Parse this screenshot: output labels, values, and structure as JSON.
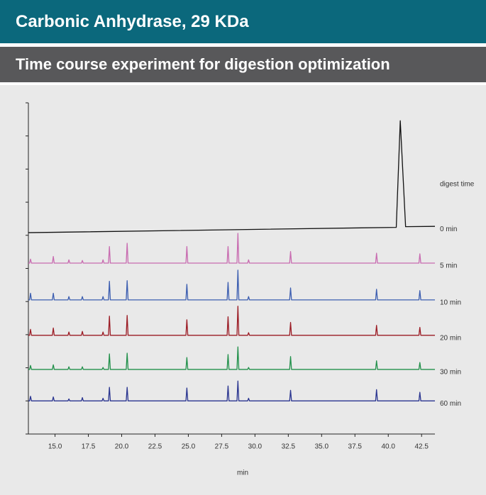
{
  "chart_data": {
    "type": "line",
    "title": "Carbonic Anhydrase, 29 KDa",
    "subtitle": "Time course experiment for digestion optimization",
    "x_label": "min",
    "legend_title": "digest time",
    "xlim": [
      13.0,
      43.5
    ],
    "xticks": [
      {
        "value": 15,
        "label": "15.0"
      },
      17.5,
      {
        "value": 20,
        "label": "20.0"
      },
      22.5,
      {
        "value": 25,
        "label": "25.0"
      },
      27.5,
      {
        "value": 30,
        "label": "30.0"
      },
      32.5,
      {
        "value": 35,
        "label": "35.0"
      },
      37.5,
      {
        "value": 40,
        "label": "40.0"
      },
      42.5
    ],
    "ylim": [
      0,
      10
    ],
    "yticks": [
      0,
      1,
      2,
      3,
      4,
      5,
      6,
      7,
      8,
      9,
      10
    ],
    "series": [
      {
        "name": "0 min",
        "color": "#111111",
        "x": [
          13.0,
          40.6,
          40.9,
          41.3,
          43.5
        ],
        "values": [
          6.08,
          6.24,
          9.46,
          6.26,
          6.27
        ]
      },
      {
        "name": "5 min",
        "color": "#c86bb0",
        "x": [
          13.0,
          13.09,
          13.16,
          13.23,
          14.8,
          14.87,
          14.94,
          15.97,
          16.04,
          16.11,
          16.98,
          17.05,
          17.12,
          18.53,
          18.6,
          18.67,
          19.01,
          19.08,
          19.15,
          20.34,
          20.41,
          20.48,
          24.82,
          24.89,
          24.96,
          27.91,
          27.98,
          28.05,
          28.65,
          28.72,
          28.79,
          29.45,
          29.52,
          29.59,
          32.6,
          32.67,
          32.74,
          39.05,
          39.12,
          39.19,
          42.3,
          42.37,
          42.44,
          43.5
        ],
        "values": [
          5.16,
          5.16,
          5.28,
          5.16,
          5.16,
          5.36,
          5.16,
          5.16,
          5.26,
          5.16,
          5.16,
          5.24,
          5.16,
          5.16,
          5.26,
          5.16,
          5.16,
          5.66,
          5.16,
          5.16,
          5.76,
          5.16,
          5.16,
          5.66,
          5.16,
          5.16,
          5.66,
          5.16,
          5.16,
          6.06,
          5.16,
          5.16,
          5.26,
          5.16,
          5.16,
          5.51,
          5.16,
          5.16,
          5.46,
          5.16,
          5.16,
          5.44,
          5.16,
          5.16
        ]
      },
      {
        "name": "10 min",
        "color": "#3b5db0",
        "x": [
          13.0,
          13.09,
          13.16,
          13.23,
          14.8,
          14.87,
          14.94,
          15.97,
          16.04,
          16.11,
          16.98,
          17.05,
          17.12,
          18.53,
          18.6,
          18.67,
          19.01,
          19.08,
          19.15,
          20.34,
          20.41,
          20.48,
          24.82,
          24.89,
          24.96,
          27.91,
          27.98,
          28.05,
          28.65,
          28.72,
          28.79,
          29.45,
          29.52,
          29.59,
          32.6,
          32.67,
          32.74,
          39.05,
          39.12,
          39.19,
          42.3,
          42.37,
          42.44,
          43.5
        ],
        "values": [
          4.05,
          4.05,
          4.25,
          4.05,
          4.05,
          4.25,
          4.05,
          4.05,
          4.15,
          4.05,
          4.05,
          4.15,
          4.05,
          4.05,
          4.15,
          4.05,
          4.05,
          4.61,
          4.05,
          4.05,
          4.63,
          4.05,
          4.05,
          4.52,
          4.05,
          4.05,
          4.58,
          4.05,
          4.05,
          4.95,
          4.05,
          4.05,
          4.15,
          4.05,
          4.05,
          4.41,
          4.05,
          4.05,
          4.37,
          4.05,
          4.05,
          4.33,
          4.05,
          4.05
        ]
      },
      {
        "name": "20 min",
        "color": "#9b1b24",
        "x": [
          13.0,
          13.09,
          13.16,
          13.23,
          14.8,
          14.87,
          14.94,
          15.97,
          16.04,
          16.11,
          16.98,
          17.05,
          17.12,
          18.53,
          18.6,
          18.67,
          19.01,
          19.08,
          19.15,
          20.34,
          20.41,
          20.48,
          24.82,
          24.89,
          24.96,
          27.91,
          27.98,
          28.05,
          28.65,
          28.72,
          28.79,
          29.45,
          29.52,
          29.59,
          32.6,
          32.67,
          32.74,
          39.05,
          39.12,
          39.19,
          42.3,
          42.37,
          42.44,
          43.5
        ],
        "values": [
          2.98,
          2.98,
          3.16,
          2.98,
          2.98,
          3.2,
          2.98,
          2.98,
          3.08,
          2.98,
          2.98,
          3.1,
          2.98,
          2.98,
          3.08,
          2.98,
          2.98,
          3.56,
          2.98,
          2.98,
          3.58,
          2.98,
          2.98,
          3.45,
          2.98,
          2.98,
          3.54,
          2.98,
          2.98,
          3.86,
          2.98,
          2.98,
          3.06,
          2.98,
          2.98,
          3.37,
          2.98,
          2.98,
          3.28,
          2.98,
          2.98,
          3.22,
          2.98,
          2.98
        ]
      },
      {
        "name": "30 min",
        "color": "#21904a",
        "x": [
          13.0,
          13.09,
          13.16,
          13.23,
          14.8,
          14.87,
          14.94,
          15.97,
          16.04,
          16.11,
          16.98,
          17.05,
          17.12,
          18.53,
          18.6,
          18.67,
          19.01,
          19.08,
          19.15,
          20.34,
          20.41,
          20.48,
          24.82,
          24.89,
          24.96,
          27.91,
          27.98,
          28.05,
          28.65,
          28.72,
          28.79,
          29.45,
          29.52,
          29.59,
          32.6,
          32.67,
          32.74,
          39.05,
          39.12,
          39.19,
          42.3,
          42.37,
          42.44,
          43.5
        ],
        "values": [
          1.95,
          1.95,
          2.07,
          1.95,
          1.95,
          2.09,
          1.95,
          1.95,
          2.03,
          1.95,
          1.95,
          2.03,
          1.95,
          1.95,
          2.01,
          1.95,
          1.95,
          2.42,
          1.95,
          1.95,
          2.44,
          1.95,
          1.95,
          2.31,
          1.95,
          1.95,
          2.4,
          1.95,
          1.95,
          2.63,
          1.95,
          1.95,
          2.01,
          1.95,
          1.95,
          2.34,
          1.95,
          1.95,
          2.21,
          1.95,
          1.95,
          2.16,
          1.95,
          1.95
        ]
      },
      {
        "name": "60 min",
        "color": "#2a3590",
        "x": [
          13.0,
          13.09,
          13.16,
          13.23,
          14.8,
          14.87,
          14.94,
          15.97,
          16.04,
          16.11,
          16.98,
          17.05,
          17.12,
          18.53,
          18.6,
          18.67,
          19.01,
          19.08,
          19.15,
          20.34,
          20.41,
          20.48,
          24.82,
          24.89,
          24.96,
          27.91,
          27.98,
          28.05,
          28.65,
          28.72,
          28.79,
          29.45,
          29.52,
          29.59,
          32.6,
          32.67,
          32.74,
          39.05,
          39.12,
          39.19,
          42.3,
          42.37,
          42.44,
          43.5
        ],
        "values": [
          1.0,
          1.0,
          1.14,
          1.0,
          1.0,
          1.12,
          1.0,
          1.0,
          1.06,
          1.0,
          1.0,
          1.1,
          1.0,
          1.0,
          1.08,
          1.0,
          1.0,
          1.41,
          1.0,
          1.0,
          1.41,
          1.0,
          1.0,
          1.39,
          1.0,
          1.0,
          1.45,
          1.0,
          1.0,
          1.6,
          1.0,
          1.0,
          1.08,
          1.0,
          1.0,
          1.32,
          1.0,
          1.0,
          1.34,
          1.0,
          1.0,
          1.26,
          1.0,
          1.0
        ]
      }
    ]
  }
}
